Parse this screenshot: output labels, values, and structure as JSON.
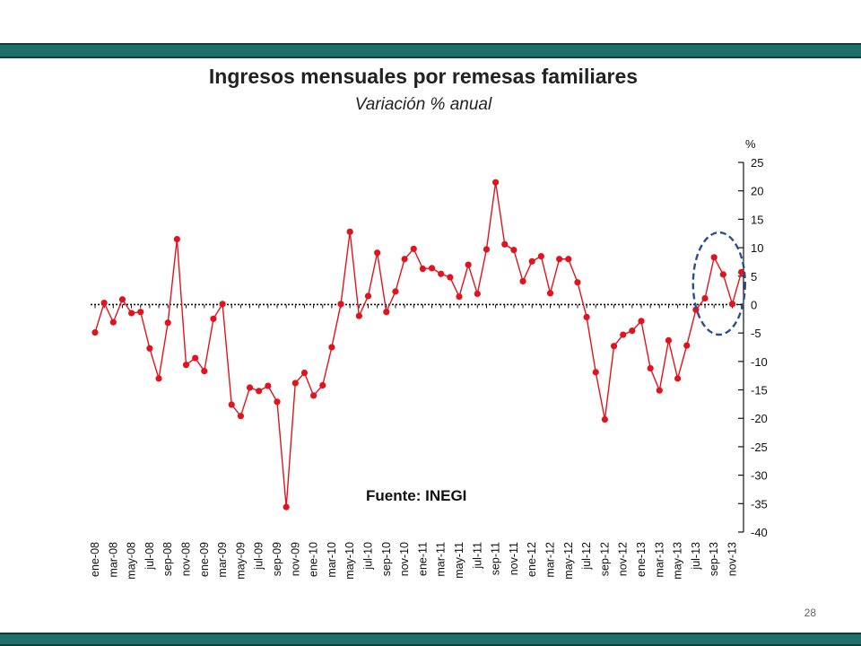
{
  "slide": {
    "page_number": "28"
  },
  "chart_data": {
    "type": "line",
    "title": "Ingresos mensuales por remesas familiares",
    "subtitle": "Variación % anual",
    "ylabel": "%",
    "source": "Fuente: INEGI",
    "ylim": [
      -40,
      25
    ],
    "yticks": [
      25,
      20,
      15,
      10,
      5,
      0,
      -5,
      -10,
      -15,
      -20,
      -25,
      -30,
      -35,
      -40
    ],
    "y_axis_side": "right",
    "categories": [
      "ene-08",
      "feb-08",
      "mar-08",
      "abr-08",
      "may-08",
      "jun-08",
      "jul-08",
      "ago-08",
      "sep-08",
      "oct-08",
      "nov-08",
      "dic-08",
      "ene-09",
      "feb-09",
      "mar-09",
      "abr-09",
      "may-09",
      "jun-09",
      "jul-09",
      "ago-09",
      "sep-09",
      "oct-09",
      "nov-09",
      "dic-09",
      "ene-10",
      "feb-10",
      "mar-10",
      "abr-10",
      "may-10",
      "jun-10",
      "jul-10",
      "ago-10",
      "sep-10",
      "oct-10",
      "nov-10",
      "dic-10",
      "ene-11",
      "feb-11",
      "mar-11",
      "abr-11",
      "may-11",
      "jun-11",
      "jul-11",
      "ago-11",
      "sep-11",
      "oct-11",
      "nov-11",
      "dic-11",
      "ene-12",
      "feb-12",
      "mar-12",
      "abr-12",
      "may-12",
      "jun-12",
      "jul-12",
      "ago-12",
      "sep-12",
      "oct-12",
      "nov-12",
      "dic-12",
      "ene-13",
      "feb-13",
      "mar-13",
      "abr-13",
      "may-13",
      "jun-13",
      "jul-13",
      "ago-13",
      "sep-13",
      "oct-13",
      "nov-13",
      "dic-13"
    ],
    "category_labels": [
      "ene-08",
      "mar-08",
      "may-08",
      "jul-08",
      "sep-08",
      "nov-08",
      "ene-09",
      "mar-09",
      "may-09",
      "jul-09",
      "sep-09",
      "nov-09",
      "ene-10",
      "mar-10",
      "may-10",
      "jul-10",
      "sep-10",
      "nov-10",
      "ene-11",
      "mar-11",
      "may-11",
      "jul-11",
      "sep-11",
      "nov-11",
      "ene-12",
      "mar-12",
      "may-12",
      "jul-12",
      "sep-12",
      "nov-12",
      "ene-13",
      "mar-13",
      "may-13",
      "jul-13",
      "sep-13",
      "nov-13"
    ],
    "series": [
      {
        "color": "#e0141e",
        "values": [
          -4.9,
          0.3,
          -3.1,
          0.9,
          -1.5,
          -1.3,
          -7.7,
          -13.0,
          -3.2,
          11.5,
          -10.6,
          -9.4,
          -11.7,
          -2.5,
          0.1,
          -17.6,
          -19.6,
          -14.6,
          -15.2,
          -14.3,
          -17.1,
          -35.6,
          -13.8,
          -12.0,
          -16.0,
          -14.2,
          -7.5,
          0.1,
          12.8,
          -2.0,
          1.5,
          9.1,
          -1.3,
          2.3,
          8.0,
          9.8,
          6.3,
          6.4,
          5.4,
          4.8,
          1.4,
          7.0,
          1.9,
          9.7,
          21.5,
          10.6,
          9.6,
          4.1,
          7.6,
          8.5,
          2.0,
          8.0,
          8.0,
          3.9,
          -2.2,
          -11.9,
          -20.2,
          -7.3,
          -5.3,
          -4.6,
          -2.9,
          -11.2,
          -15.1,
          -6.3,
          -13.0,
          -7.2,
          -0.9,
          1.1,
          8.3,
          5.3,
          0.1,
          5.7
        ]
      }
    ],
    "highlight_annotation": {
      "shape": "dashed ellipse",
      "color": "#2b4f8c",
      "start_category": "jul-13",
      "end_category": "dic-13"
    },
    "zero_line": {
      "style": "dotted with ticks",
      "color": "#111111"
    }
  }
}
